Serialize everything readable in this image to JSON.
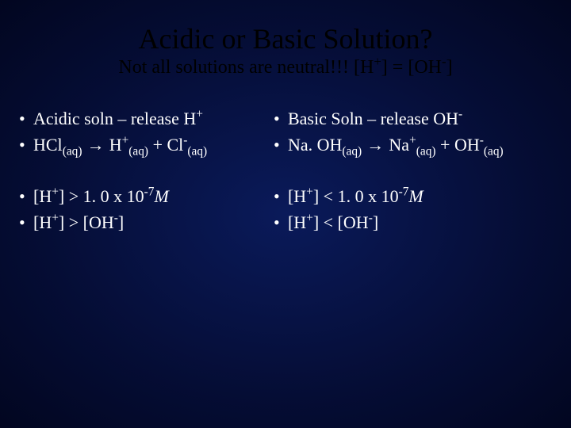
{
  "slide": {
    "background_center": "#0a1a5a",
    "background_edge": "#020620",
    "title_color": "#000000",
    "text_color": "#ffffff",
    "title": "Acidic or Basic Solution?",
    "subtitle_pre": "Not all solutions are neutral!!! [H",
    "subtitle_sup1": "+",
    "subtitle_mid": "] = [OH",
    "subtitle_sup2": "-",
    "subtitle_end": "]",
    "left": {
      "b1_pre": "Acidic soln – release H",
      "b1_sup": "+",
      "b2_a": "HCl",
      "b2_sub1": "(aq)",
      "b2_arrow": " → ",
      "b2_b": "H",
      "b2_sup1": "+",
      "b2_sub2": "(aq)",
      "b2_plus": " + Cl",
      "b2_sup2": "-",
      "b2_sub3": "(aq)",
      "b3_pre": "[H",
      "b3_sup": "+",
      "b3_mid": "] > 1. 0 x 10",
      "b3_sup2": "-7",
      "b3_end": "M",
      "b4_pre": "[H",
      "b4_sup": "+",
      "b4_mid": "] > [OH",
      "b4_sup2": "-",
      "b4_end": "]"
    },
    "right": {
      "b1_pre": "Basic Soln – release OH",
      "b1_sup": "-",
      "b2_a": "Na. OH",
      "b2_sub1": "(aq)",
      "b2_arrow": " → ",
      "b2_b": "Na",
      "b2_sup1": "+",
      "b2_sub2": "(aq)",
      "b2_plus": " + OH",
      "b2_sup2": "-",
      "b2_sub3": "(aq)",
      "b3_pre": "[H",
      "b3_sup": "+",
      "b3_mid": "] < 1. 0 x 10",
      "b3_sup2": "-7",
      "b3_end": "M",
      "b4_pre": "[H",
      "b4_sup": "+",
      "b4_mid": "] < [OH",
      "b4_sup2": "-",
      "b4_end": "]"
    }
  }
}
